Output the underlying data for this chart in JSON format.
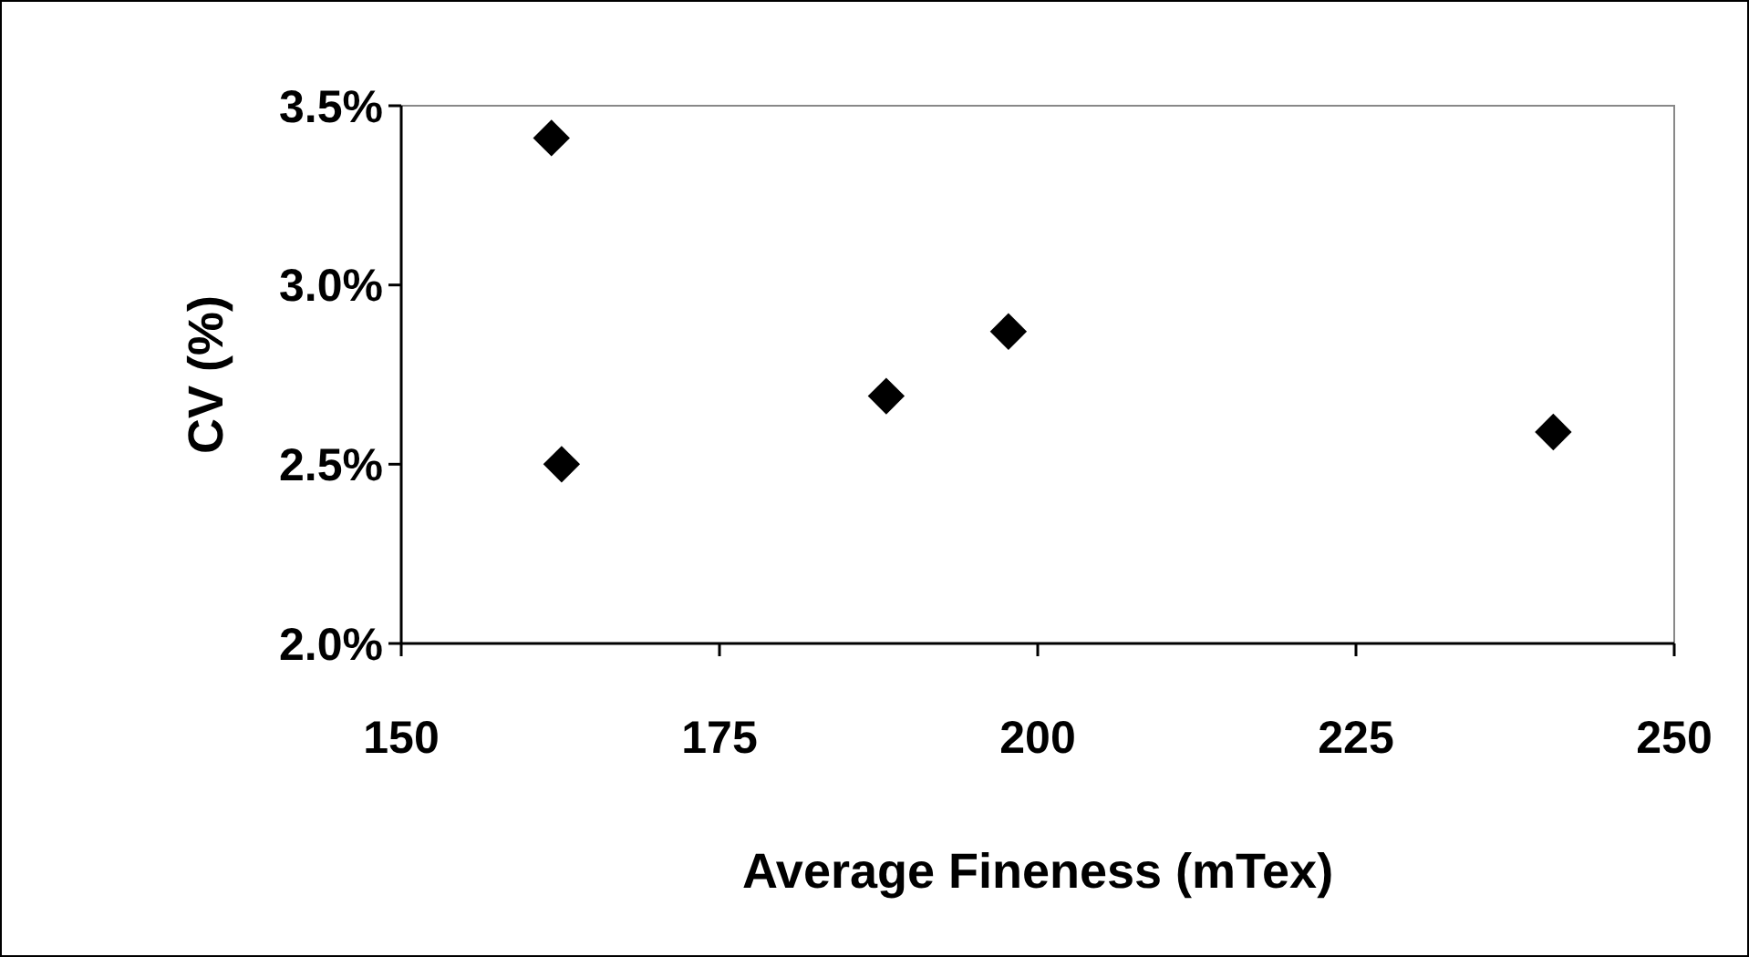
{
  "chart_data": {
    "type": "scatter",
    "xlabel": "Average Fineness (mTex)",
    "ylabel": "CV (%)",
    "x": [
      161.8,
      162.6,
      188.1,
      197.7,
      240.5
    ],
    "values": [
      3.41,
      2.5,
      2.69,
      2.87,
      2.59
    ],
    "color": "#000000",
    "marker": "diamond",
    "grid": false,
    "xlim": [
      150,
      250
    ],
    "xticks": [
      150,
      175,
      200,
      225,
      250
    ],
    "ylim": [
      2.0,
      3.5
    ],
    "yticks": [
      {
        "value": 2.0,
        "label": "2.0%"
      },
      {
        "value": 2.5,
        "label": "2.5%"
      },
      {
        "value": 3.0,
        "label": "3.0%"
      },
      {
        "value": 3.5,
        "label": "3.5%"
      }
    ]
  }
}
